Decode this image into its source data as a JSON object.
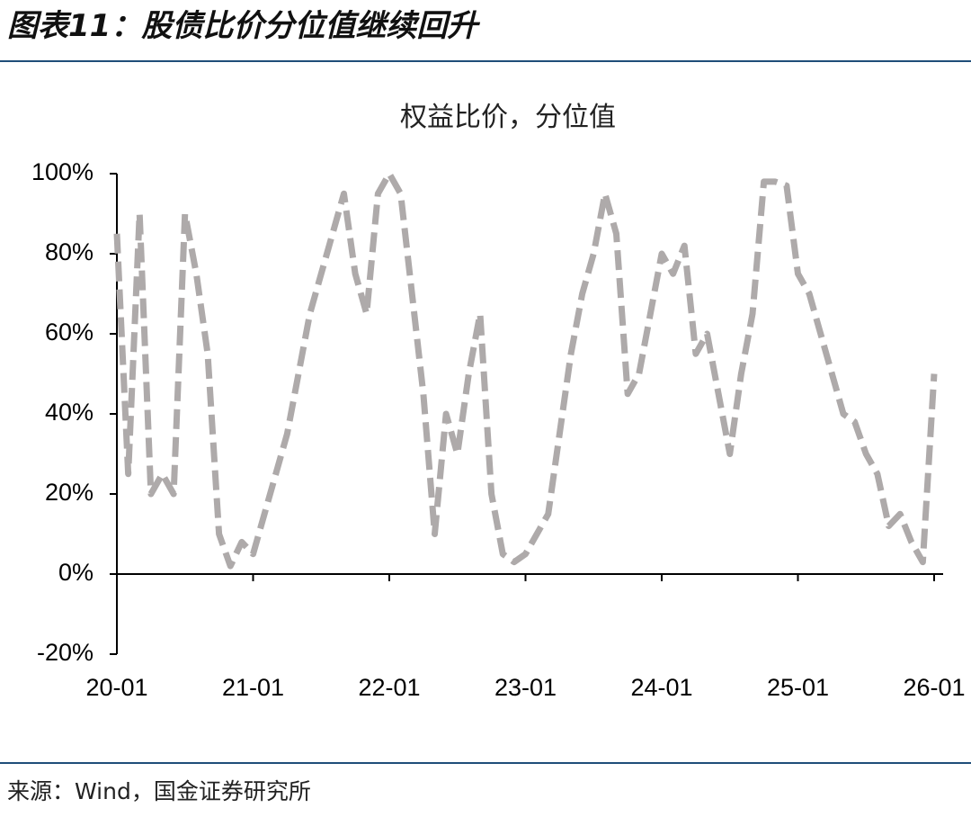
{
  "header": {
    "title": "图表11：股债比价分位值继续回升"
  },
  "chart_data": {
    "type": "line",
    "title": "权益比价，分位值",
    "x": [
      "20-01",
      "20-02",
      "20-03",
      "20-04",
      "20-05",
      "20-06",
      "20-07",
      "20-08",
      "20-09",
      "20-10",
      "20-11",
      "20-12",
      "21-01",
      "21-02",
      "21-03",
      "21-04",
      "21-05",
      "21-06",
      "21-07",
      "21-08",
      "21-09",
      "21-10",
      "21-11",
      "21-12",
      "22-01",
      "22-02",
      "22-03",
      "22-04",
      "22-05",
      "22-06",
      "22-07",
      "22-08",
      "22-09",
      "22-10",
      "22-11",
      "22-12",
      "23-01",
      "23-02",
      "23-03",
      "23-04",
      "23-05",
      "23-06",
      "23-07",
      "23-08",
      "23-09",
      "23-10",
      "23-11",
      "23-12",
      "24-01",
      "24-02",
      "24-03",
      "24-04",
      "24-05",
      "24-06",
      "24-07",
      "24-08",
      "24-09",
      "24-10",
      "24-11",
      "24-12",
      "25-01",
      "25-02",
      "25-03",
      "25-04",
      "25-05",
      "25-06",
      "25-07",
      "25-08",
      "25-09",
      "25-10",
      "25-11",
      "25-12",
      "26-01"
    ],
    "series": [
      {
        "color": "#aeaaaa",
        "values": [
          85,
          25,
          90,
          20,
          25,
          20,
          90,
          75,
          55,
          10,
          2,
          8,
          5,
          15,
          25,
          35,
          50,
          65,
          75,
          85,
          95,
          75,
          65,
          95,
          100,
          95,
          70,
          45,
          10,
          40,
          30,
          50,
          65,
          20,
          5,
          3,
          5,
          10,
          15,
          35,
          55,
          70,
          80,
          95,
          85,
          45,
          50,
          65,
          80,
          75,
          82,
          55,
          60,
          45,
          30,
          50,
          65,
          98,
          98,
          97,
          75,
          70,
          60,
          50,
          40,
          38,
          30,
          25,
          12,
          15,
          8,
          3,
          50
        ]
      }
    ],
    "xticks": [
      "20-01",
      "21-01",
      "22-01",
      "23-01",
      "24-01",
      "25-01",
      "26-01"
    ],
    "ylim": [
      -20,
      100
    ],
    "yticks": [
      {
        "value": -20,
        "label": "-20%"
      },
      {
        "value": 0,
        "label": "0%"
      },
      {
        "value": 20,
        "label": "20%"
      },
      {
        "value": 40,
        "label": "40%"
      },
      {
        "value": 60,
        "label": "60%"
      },
      {
        "value": 80,
        "label": "80%"
      },
      {
        "value": 100,
        "label": "100%"
      }
    ]
  },
  "footer": {
    "source": "来源：Wind，国金证券研究所"
  }
}
